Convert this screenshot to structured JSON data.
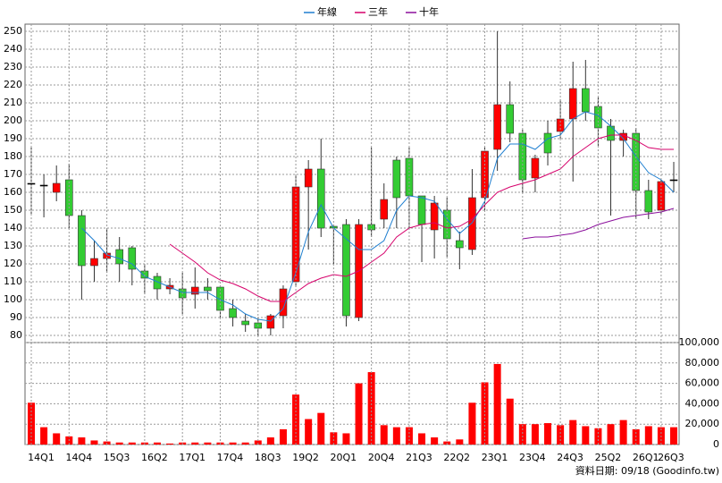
{
  "chart_data": [
    {
      "type": "candlestick",
      "open": [
        165,
        164,
        160,
        167,
        147,
        119,
        123,
        128,
        129,
        116,
        113,
        106,
        106,
        103,
        107,
        107,
        95,
        88,
        87,
        84,
        91,
        110,
        163,
        173,
        141,
        142,
        90,
        142,
        145,
        178,
        179,
        158,
        139,
        150,
        133,
        128,
        157,
        184,
        209,
        193,
        168,
        193,
        194,
        201,
        218,
        208,
        197,
        189,
        193,
        161,
        150,
        167
      ],
      "high": [
        185,
        170,
        175,
        176,
        150,
        133,
        140,
        135,
        130,
        120,
        115,
        112,
        115,
        118,
        112,
        108,
        100,
        92,
        90,
        92,
        108,
        170,
        178,
        190,
        142,
        145,
        145,
        185,
        165,
        180,
        185,
        158,
        158,
        157,
        138,
        173,
        185,
        250,
        222,
        195,
        181,
        200,
        212,
        233,
        234,
        213,
        201,
        195,
        196,
        167,
        167,
        177
      ],
      "low": [
        147,
        146,
        155,
        140,
        100,
        110,
        115,
        110,
        108,
        103,
        100,
        103,
        92,
        95,
        100,
        90,
        85,
        82,
        80,
        80,
        84,
        107,
        128,
        135,
        120,
        85,
        88,
        135,
        140,
        140,
        140,
        121,
        123,
        124,
        117,
        125,
        150,
        172,
        188,
        160,
        160,
        175,
        190,
        166,
        200,
        186,
        147,
        180,
        145,
        145,
        148,
        160
      ],
      "close": [
        165,
        164,
        165,
        147,
        119,
        123,
        126,
        120,
        117,
        112,
        106,
        108,
        101,
        107,
        105,
        94,
        90,
        86,
        84,
        91,
        106,
        163,
        173,
        140,
        140,
        91,
        142,
        139,
        156,
        157,
        158,
        142,
        154,
        134,
        129,
        157,
        183,
        209,
        193,
        167,
        179,
        182,
        201,
        218,
        205,
        196,
        189,
        193,
        161,
        149,
        166,
        167
      ],
      "up_color": "#ff0000",
      "down_color": "#33cc33",
      "series": [
        {
          "name": "年線",
          "color": "#1f7fd0",
          "values": [
            null,
            null,
            null,
            null,
            140,
            133,
            125,
            123,
            120,
            113,
            110,
            107,
            104,
            104,
            104,
            100,
            97,
            92,
            89,
            88,
            95,
            115,
            138,
            153,
            140,
            134,
            128,
            128,
            133,
            150,
            158,
            157,
            155,
            145,
            137,
            143,
            155,
            179,
            187,
            187,
            184,
            190,
            192,
            201,
            205,
            203,
            197,
            190,
            180,
            171,
            167,
            160
          ]
        },
        {
          "name": "三年",
          "color": "#d6006b",
          "values": [
            null,
            null,
            null,
            null,
            null,
            null,
            null,
            null,
            null,
            null,
            null,
            131,
            126,
            121,
            115,
            111,
            109,
            106,
            102,
            99,
            99,
            104,
            109,
            112,
            114,
            113,
            116,
            121,
            126,
            135,
            140,
            142,
            143,
            140,
            141,
            145,
            153,
            160,
            163,
            165,
            167,
            170,
            173,
            180,
            185,
            190,
            192,
            192,
            189,
            185,
            184,
            184
          ]
        },
        {
          "name": "十年",
          "color": "#8b0f9c",
          "values": [
            null,
            null,
            null,
            null,
            null,
            null,
            null,
            null,
            null,
            null,
            null,
            null,
            null,
            null,
            null,
            null,
            null,
            null,
            null,
            null,
            null,
            null,
            null,
            null,
            null,
            null,
            null,
            null,
            null,
            null,
            null,
            null,
            null,
            null,
            null,
            null,
            null,
            null,
            null,
            134,
            135,
            135,
            136,
            137,
            139,
            142,
            144,
            146,
            147,
            148,
            149,
            151
          ]
        }
      ],
      "ylim": [
        76,
        254
      ],
      "yticks": [
        80,
        90,
        100,
        110,
        120,
        130,
        140,
        150,
        160,
        170,
        180,
        190,
        200,
        210,
        220,
        230,
        240,
        250
      ],
      "grid": true,
      "legend": "top"
    },
    {
      "type": "bar",
      "color": "#ff0000",
      "categories": [
        "14Q1",
        null,
        null,
        "14Q4",
        null,
        null,
        "15Q3",
        null,
        null,
        "16Q2",
        null,
        null,
        "17Q1",
        null,
        null,
        "17Q4",
        null,
        null,
        "18Q3",
        null,
        null,
        "19Q2",
        null,
        null,
        "20Q1",
        null,
        null,
        "20Q4",
        null,
        null,
        "21Q3",
        null,
        null,
        "22Q2",
        null,
        null,
        "23Q1",
        null,
        null,
        "23Q4",
        null,
        null,
        "24Q3",
        null,
        null,
        "25Q2",
        null,
        null,
        "26Q1",
        null,
        "26Q3",
        null
      ],
      "values": [
        41000,
        17000,
        11000,
        8000,
        7000,
        4000,
        3000,
        2000,
        2000,
        2000,
        2000,
        1000,
        2000,
        2000,
        2000,
        2000,
        2000,
        2000,
        4000,
        7000,
        15000,
        49000,
        25000,
        31000,
        12000,
        11000,
        60000,
        71000,
        19000,
        17000,
        17000,
        11000,
        7000,
        3000,
        5000,
        41000,
        61000,
        79000,
        45000,
        20000,
        20000,
        21000,
        19000,
        24000,
        18000,
        16000,
        20000,
        24000,
        15000,
        18000,
        17000,
        17000
      ],
      "ylim": [
        0,
        100000
      ],
      "yticks": [
        0,
        {
          "value": 20000,
          "label": "20,000"
        },
        {
          "value": 40000,
          "label": "40,000"
        },
        {
          "value": 60000,
          "label": "60,000"
        },
        {
          "value": 80000,
          "label": "80,000"
        },
        {
          "value": 100000,
          "label": "100,000"
        }
      ],
      "grid": true,
      "footnote": "資料日期: 09/18 (Goodinfo.tw)"
    }
  ]
}
